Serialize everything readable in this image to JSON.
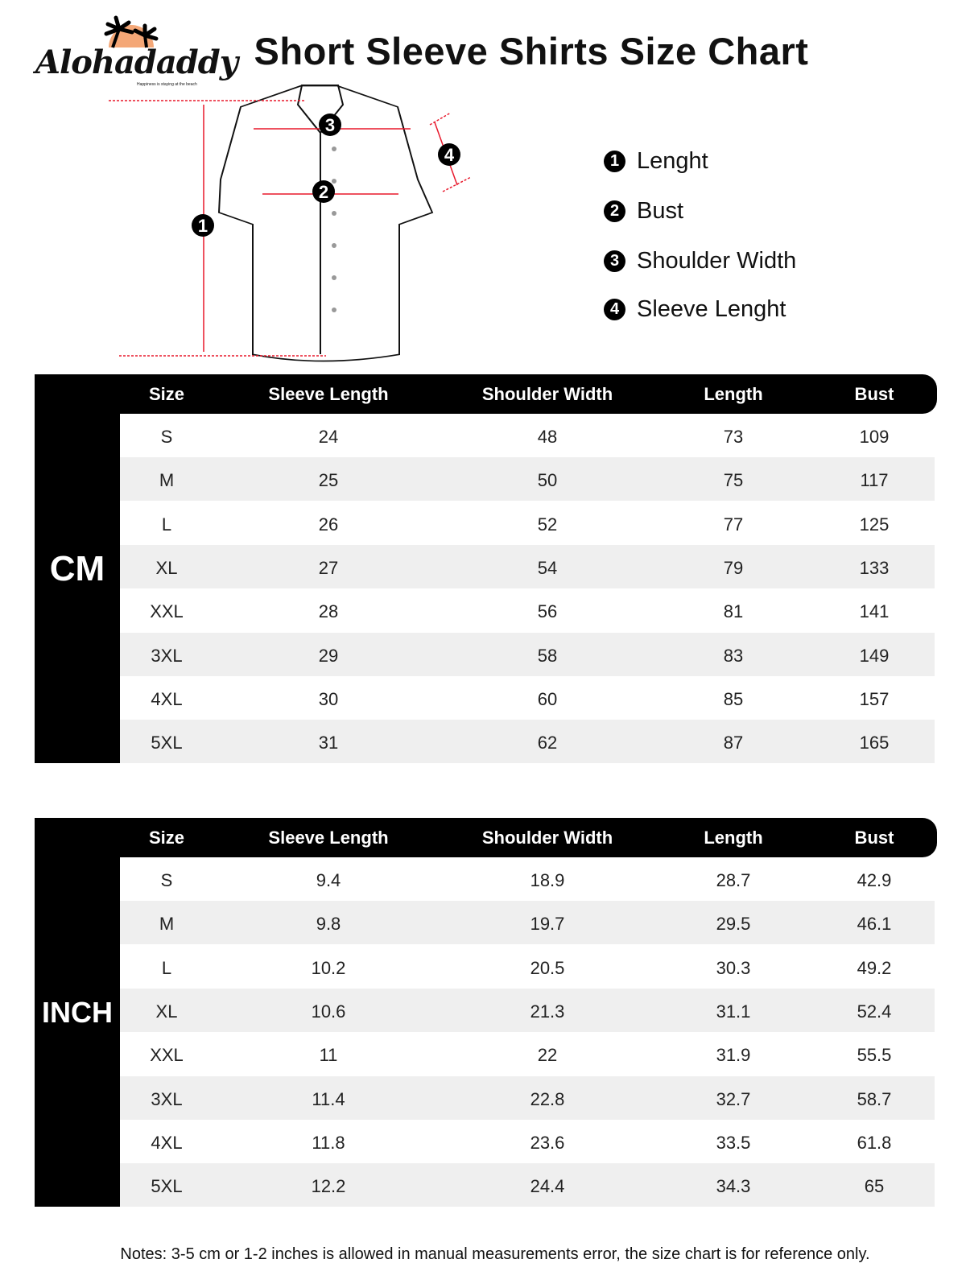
{
  "brand": {
    "name": "Alohadaddy",
    "tagline": "Happiness is staying at the beach"
  },
  "title": "Short Sleeve Shirts Size Chart",
  "legend": [
    {
      "num": "1",
      "label": "Lenght"
    },
    {
      "num": "2",
      "label": "Bust"
    },
    {
      "num": "3",
      "label": "Shoulder Width"
    },
    {
      "num": "4",
      "label": "Sleeve Lenght"
    }
  ],
  "diagram_markers": [
    "1",
    "2",
    "3",
    "4"
  ],
  "colors": {
    "accent": "#e8192c",
    "header": "#000000",
    "alt_row": "#efefef",
    "logo_sun": "#f4a777"
  },
  "columns": [
    "Size",
    "Sleeve Length",
    "Shoulder Width",
    "Length",
    "Bust"
  ],
  "tables": [
    {
      "unit": "CM",
      "rows": [
        [
          "S",
          "24",
          "48",
          "73",
          "109"
        ],
        [
          "M",
          "25",
          "50",
          "75",
          "117"
        ],
        [
          "L",
          "26",
          "52",
          "77",
          "125"
        ],
        [
          "XL",
          "27",
          "54",
          "79",
          "133"
        ],
        [
          "XXL",
          "28",
          "56",
          "81",
          "141"
        ],
        [
          "3XL",
          "29",
          "58",
          "83",
          "149"
        ],
        [
          "4XL",
          "30",
          "60",
          "85",
          "157"
        ],
        [
          "5XL",
          "31",
          "62",
          "87",
          "165"
        ]
      ]
    },
    {
      "unit": "INCH",
      "rows": [
        [
          "S",
          "9.4",
          "18.9",
          "28.7",
          "42.9"
        ],
        [
          "M",
          "9.8",
          "19.7",
          "29.5",
          "46.1"
        ],
        [
          "L",
          "10.2",
          "20.5",
          "30.3",
          "49.2"
        ],
        [
          "XL",
          "10.6",
          "21.3",
          "31.1",
          "52.4"
        ],
        [
          "XXL",
          "11",
          "22",
          "31.9",
          "55.5"
        ],
        [
          "3XL",
          "11.4",
          "22.8",
          "32.7",
          "58.7"
        ],
        [
          "4XL",
          "11.8",
          "23.6",
          "33.5",
          "61.8"
        ],
        [
          "5XL",
          "12.2",
          "24.4",
          "34.3",
          "65"
        ]
      ]
    }
  ],
  "notes": "Notes: 3-5 cm or 1-2 inches is allowed in manual measurements error, the size chart is for reference only."
}
